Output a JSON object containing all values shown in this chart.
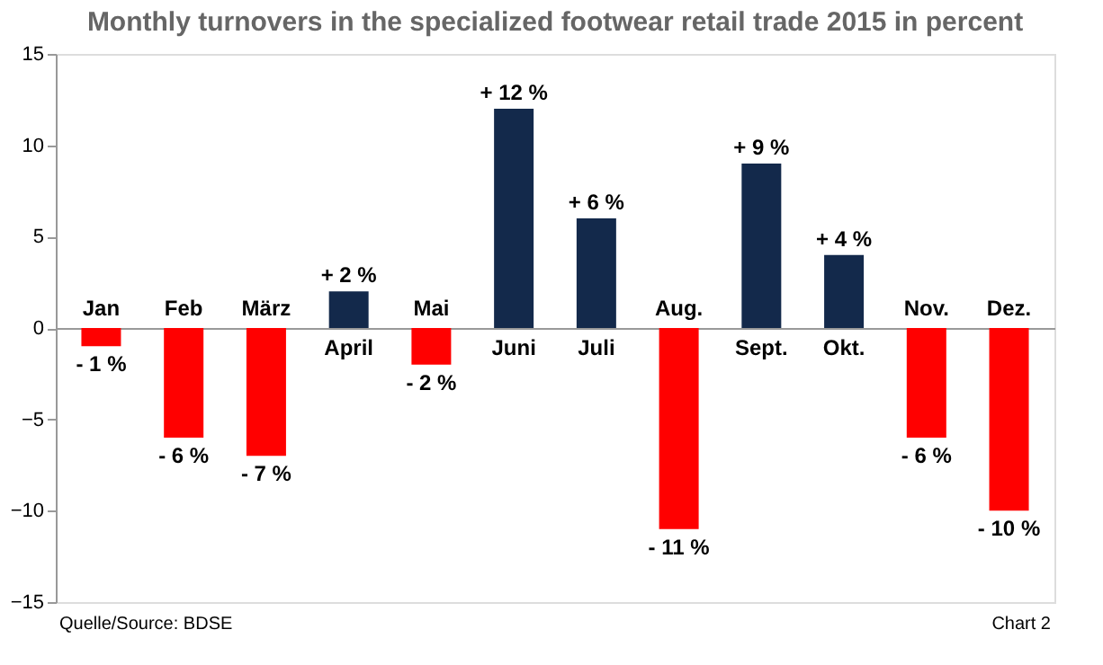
{
  "chart_data": {
    "type": "bar",
    "title": "Monthly turnovers in the specialized footwear retail trade 2015 in percent",
    "categories": [
      "Jan",
      "Feb",
      "März",
      "April",
      "Mai",
      "Juni",
      "Juli",
      "Aug.",
      "Sept.",
      "Okt.",
      "Nov.",
      "Dez."
    ],
    "values": [
      -1,
      -6,
      -7,
      2,
      -2,
      12,
      6,
      -11,
      9,
      4,
      -6,
      -10
    ],
    "colors": [
      "#ff0000",
      "#ff0000",
      "#ff0000",
      "#13294b",
      "#ff0000",
      "#13294b",
      "#13294b",
      "#ff0000",
      "#13294b",
      "#13294b",
      "#ff0000",
      "#ff0000"
    ],
    "value_labels": [
      "- 1 %",
      "- 6 %",
      "- 7 %",
      "+ 2 %",
      "- 2 %",
      "+ 12 %",
      "+ 6 %",
      "- 11 %",
      "+ 9 %",
      "+ 4 %",
      "- 6 %",
      "- 10 %"
    ],
    "ylim": [
      -15,
      15
    ],
    "yticks": [
      -15,
      -10,
      -5,
      0,
      5,
      10,
      15
    ],
    "grid": false,
    "annotations": [
      "Quelle/Source: BDSE",
      "Chart 2"
    ]
  }
}
